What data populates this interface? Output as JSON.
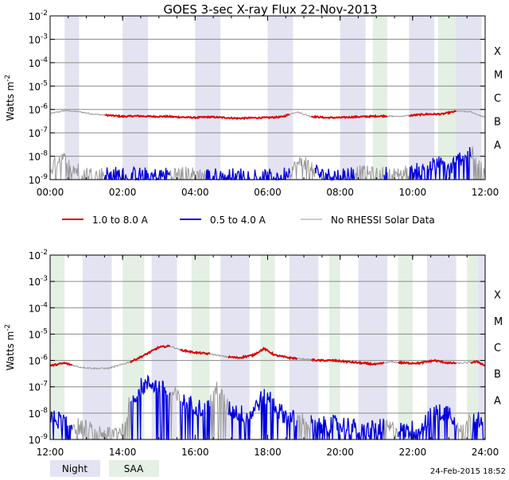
{
  "chart_data": {
    "type": "line",
    "title": "GOES 3-sec X-ray Flux   22-Nov-2013",
    "ylabel": "Watts m^-2",
    "ylim_log10": [
      -9,
      -2
    ],
    "colors": {
      "long": "#dd0000",
      "short": "#0000dd",
      "no_rhessi": "#9a9a9a",
      "night": "#e3e3f2",
      "saa": "#e3f0e3"
    },
    "legend": [
      {
        "name": "1.0 to 8.0 A",
        "color": "#dd0000"
      },
      {
        "name": "0.5 to 4.0 A",
        "color": "#0000dd"
      },
      {
        "name": "No RHESSI Solar Data",
        "color": "#9a9a9a"
      }
    ],
    "shade_legend": {
      "night": "Night",
      "saa": "SAA"
    },
    "flare_classes": [
      {
        "label": "X",
        "log": -3.5
      },
      {
        "label": "M",
        "log": -4.5
      },
      {
        "label": "C",
        "log": -5.5
      },
      {
        "label": "B",
        "log": -6.5
      },
      {
        "label": "A",
        "log": -7.5
      }
    ],
    "timestamp": "24-Feb-2015 18:52",
    "panels": [
      {
        "name": "top",
        "xlim_hours": [
          0,
          12
        ],
        "x_tick_labels": [
          "00:00",
          "02:00",
          "04:00",
          "06:00",
          "08:00",
          "10:00",
          "12:00"
        ],
        "night": [
          [
            0.4,
            0.8
          ],
          [
            2.0,
            2.7
          ],
          [
            4.0,
            4.7
          ],
          [
            6.0,
            6.7
          ],
          [
            8.0,
            8.7
          ],
          [
            9.9,
            10.6
          ],
          [
            11.2,
            11.9
          ]
        ],
        "saa": [
          [
            8.9,
            9.3
          ],
          [
            10.7,
            11.2
          ]
        ],
        "long_1_8A": {
          "times": [
            0,
            0.4,
            0.8,
            1.2,
            1.6,
            2.0,
            2.4,
            2.8,
            3.2,
            3.6,
            4.0,
            4.4,
            4.8,
            5.2,
            5.6,
            6.0,
            6.4,
            6.8,
            7.2,
            7.6,
            8.0,
            8.4,
            8.8,
            9.2,
            9.6,
            10.0,
            10.4,
            10.8,
            11.2,
            11.6,
            12.0
          ],
          "log_flux": [
            -6.18,
            -6.05,
            -6.1,
            -6.2,
            -6.25,
            -6.3,
            -6.28,
            -6.3,
            -6.3,
            -6.33,
            -6.35,
            -6.32,
            -6.35,
            -6.38,
            -6.36,
            -6.35,
            -6.32,
            -6.1,
            -6.3,
            -6.35,
            -6.35,
            -6.32,
            -6.3,
            -6.28,
            -6.3,
            -6.25,
            -6.2,
            -6.2,
            -6.08,
            -6.1,
            -6.35
          ],
          "no_rhessi_intervals": [
            [
              0,
              1.5
            ],
            [
              6.6,
              7.2
            ],
            [
              9.3,
              9.9
            ],
            [
              11.2,
              12.0
            ]
          ]
        },
        "short_0_5_4A": {
          "times": [
            0,
            0.3,
            0.6,
            0.9,
            1.2,
            1.6,
            2.0,
            2.5,
            3.0,
            3.5,
            4.0,
            4.5,
            5.0,
            5.5,
            6.0,
            6.5,
            7.0,
            7.5,
            8.0,
            8.5,
            9.0,
            9.5,
            10.0,
            10.5,
            10.8,
            11.0,
            11.2,
            11.4,
            11.6,
            11.8,
            12.0
          ],
          "log_flux": [
            -8.6,
            -8.0,
            -8.5,
            -8.7,
            -8.8,
            -8.75,
            -8.8,
            -8.8,
            -8.85,
            -8.75,
            -8.8,
            -8.85,
            -8.85,
            -8.8,
            -8.9,
            -8.75,
            -8.2,
            -8.85,
            -8.8,
            -8.7,
            -8.8,
            -8.75,
            -8.7,
            -8.4,
            -8.3,
            -8.6,
            -8.2,
            -8.0,
            -7.8,
            -8.3,
            -8.7
          ],
          "no_rhessi_intervals": [
            [
              0,
              1.5
            ],
            [
              3.3,
              4.3
            ],
            [
              6.6,
              7.3
            ],
            [
              8.4,
              9.2
            ],
            [
              9.3,
              9.9
            ],
            [
              11.6,
              12.0
            ]
          ]
        }
      },
      {
        "name": "bottom",
        "xlim_hours": [
          12,
          24
        ],
        "x_tick_labels": [
          "12:00",
          "14:00",
          "16:00",
          "18:00",
          "20:00",
          "22:00",
          "24:00"
        ],
        "night": [
          [
            12.9,
            13.7
          ],
          [
            14.8,
            15.5
          ],
          [
            16.7,
            17.5
          ],
          [
            18.6,
            19.4
          ],
          [
            20.5,
            21.3
          ],
          [
            22.4,
            23.2
          ],
          [
            23.8,
            24.0
          ]
        ],
        "saa": [
          [
            12.0,
            12.4
          ],
          [
            14.0,
            14.6
          ],
          [
            15.9,
            16.4
          ],
          [
            17.8,
            18.2
          ],
          [
            19.7,
            20.0
          ],
          [
            21.6,
            22.0
          ],
          [
            23.5,
            23.8
          ]
        ],
        "long_1_8A": {
          "times": [
            12,
            12.4,
            12.8,
            13.2,
            13.6,
            14.0,
            14.3,
            14.6,
            15.0,
            15.3,
            15.6,
            16.0,
            16.4,
            16.8,
            17.2,
            17.6,
            17.9,
            18.2,
            18.6,
            19.0,
            19.4,
            19.8,
            20.2,
            20.6,
            21.0,
            21.4,
            21.8,
            22.2,
            22.6,
            23.0,
            23.4,
            23.8,
            24.0
          ],
          "log_flux": [
            -6.2,
            -6.1,
            -6.25,
            -6.3,
            -6.3,
            -6.15,
            -6.0,
            -5.8,
            -5.5,
            -5.45,
            -5.6,
            -5.7,
            -5.75,
            -5.85,
            -5.9,
            -5.8,
            -5.55,
            -5.8,
            -5.9,
            -5.95,
            -6.0,
            -6.0,
            -6.05,
            -6.1,
            -6.15,
            -6.05,
            -6.1,
            -6.1,
            -6.0,
            -6.1,
            -6.1,
            -6.05,
            -6.2
          ],
          "no_rhessi_intervals": [
            [
              12.6,
              14.2
            ],
            [
              15.3,
              15.6
            ],
            [
              16.4,
              16.9
            ],
            [
              18.8,
              19.2
            ],
            [
              21.2,
              21.6
            ],
            [
              23.2,
              23.6
            ]
          ]
        },
        "short_0_5_4A": {
          "times": [
            12,
            12.4,
            12.8,
            13.2,
            13.6,
            14.0,
            14.2,
            14.5,
            14.8,
            15.1,
            15.4,
            15.7,
            16.0,
            16.3,
            16.6,
            16.9,
            17.2,
            17.5,
            17.8,
            18.0,
            18.3,
            18.6,
            19.0,
            19.4,
            19.8,
            20.2,
            20.6,
            21.0,
            21.4,
            21.8,
            22.2,
            22.6,
            23.0,
            23.4,
            23.8,
            24.0
          ],
          "log_flux": [
            -8.2,
            -8.3,
            -8.5,
            -8.7,
            -8.8,
            -8.6,
            -7.6,
            -7.0,
            -6.85,
            -7.1,
            -7.3,
            -7.6,
            -7.7,
            -7.9,
            -7.0,
            -7.8,
            -8.0,
            -8.1,
            -7.5,
            -7.3,
            -7.9,
            -8.2,
            -8.3,
            -8.5,
            -8.4,
            -8.45,
            -8.7,
            -8.5,
            -8.6,
            -8.7,
            -8.5,
            -8.0,
            -7.95,
            -8.5,
            -8.0,
            -9.0
          ],
          "no_rhessi_intervals": [
            [
              12.6,
              14.2
            ],
            [
              15.3,
              15.6
            ],
            [
              16.4,
              16.9
            ],
            [
              18.8,
              19.2
            ],
            [
              21.2,
              21.6
            ],
            [
              23.2,
              23.6
            ]
          ]
        }
      }
    ]
  }
}
